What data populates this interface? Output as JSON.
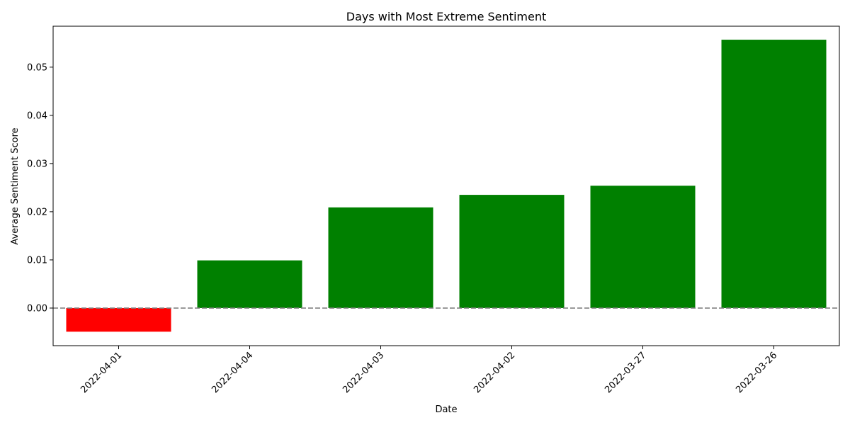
{
  "chart_data": {
    "type": "bar",
    "title": "Days with Most Extreme Sentiment",
    "xlabel": "Date",
    "ylabel": "Average Sentiment Score",
    "categories": [
      "2022-04-01",
      "2022-04-04",
      "2022-04-03",
      "2022-04-02",
      "2022-03-27",
      "2022-03-26"
    ],
    "values": [
      -0.0049,
      0.0099,
      0.0209,
      0.0235,
      0.0254,
      0.0557
    ],
    "colors": [
      "#ff0000",
      "#008000",
      "#008000",
      "#008000",
      "#008000",
      "#008000"
    ],
    "ylim": [
      -0.0078,
      0.0585
    ],
    "yticks": [
      0.0,
      0.01,
      0.02,
      0.03,
      0.04,
      0.05
    ],
    "ytick_labels": [
      "0.00",
      "0.01",
      "0.02",
      "0.03",
      "0.04",
      "0.05"
    ],
    "reference_line": {
      "y": 0,
      "style": "dashed",
      "color": "#808080"
    },
    "grid": false,
    "legend": "none"
  }
}
